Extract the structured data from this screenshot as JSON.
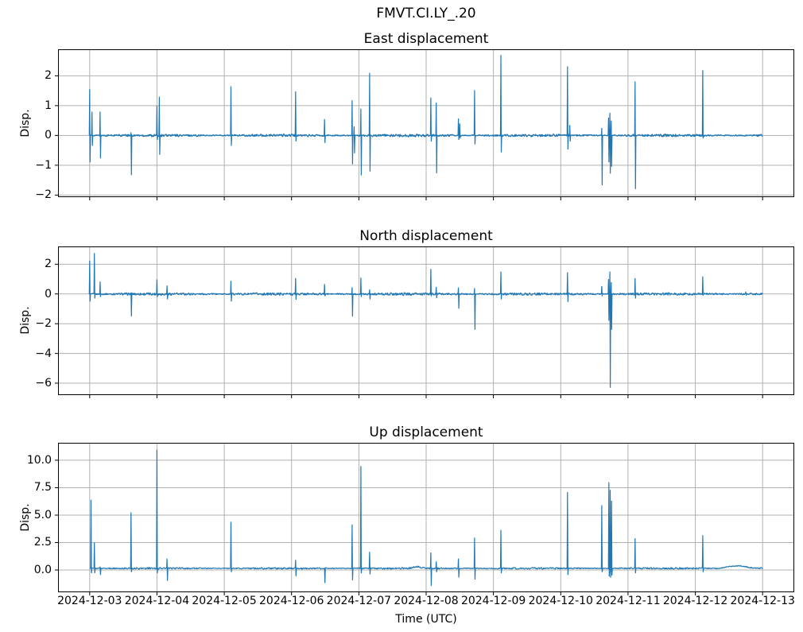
{
  "figure": {
    "suptitle": "FMVT.CI.LY_.20",
    "xlabel": "Time (UTC)",
    "background": "#ffffff",
    "line_color": "#1f77b4",
    "grid_color": "#b0b0b0",
    "spine_color": "#000000",
    "xlim_days_rel_first_tick": [
      -0.47,
      10.47
    ],
    "x_ticks": [
      {
        "day": 0,
        "label": "2024-12-03"
      },
      {
        "day": 1,
        "label": "2024-12-04"
      },
      {
        "day": 2,
        "label": "2024-12-05"
      },
      {
        "day": 3,
        "label": "2024-12-06"
      },
      {
        "day": 4,
        "label": "2024-12-07"
      },
      {
        "day": 5,
        "label": "2024-12-08"
      },
      {
        "day": 6,
        "label": "2024-12-09"
      },
      {
        "day": 7,
        "label": "2024-12-10"
      },
      {
        "day": 8,
        "label": "2024-12-11"
      },
      {
        "day": 9,
        "label": "2024-12-12"
      },
      {
        "day": 10,
        "label": "2024-12-13"
      }
    ]
  },
  "chart_data": [
    {
      "type": "line",
      "title": "East displacement",
      "ylabel": "Disp.",
      "ylim": [
        -2.07,
        2.89
      ],
      "yticks": [
        {
          "v": 2,
          "label": "2"
        },
        {
          "v": 1,
          "label": "1"
        },
        {
          "v": 0,
          "label": "0"
        },
        {
          "v": -1,
          "label": "−1"
        },
        {
          "v": -2,
          "label": "−2"
        }
      ],
      "x_start_day": 0,
      "x_end_day": 10,
      "baseline": 0,
      "noise_amp": 0.035,
      "bumps": [],
      "spikes": [
        [
          0.0,
          1.55,
          -0.9
        ],
        [
          0.035,
          0.8,
          -0.35
        ],
        [
          0.155,
          0.8,
          -0.77
        ],
        [
          0.615,
          0.1,
          -1.33
        ],
        [
          1.0,
          1.0,
          -0.15
        ],
        [
          1.035,
          1.3,
          -0.65
        ],
        [
          2.1,
          1.65,
          -0.35
        ],
        [
          3.06,
          1.48,
          -0.2
        ],
        [
          3.49,
          0.55,
          -0.25
        ],
        [
          3.9,
          1.18,
          -0.97
        ],
        [
          3.93,
          0.3,
          -0.6
        ],
        [
          4.03,
          0.9,
          -1.34
        ],
        [
          4.16,
          2.1,
          -1.21
        ],
        [
          5.07,
          1.27,
          -0.2
        ],
        [
          5.15,
          1.1,
          -1.27
        ],
        [
          5.48,
          0.57,
          -0.15
        ],
        [
          5.5,
          0.4,
          -0.1
        ],
        [
          5.72,
          1.52,
          -0.3
        ],
        [
          6.11,
          2.7,
          -0.57
        ],
        [
          7.1,
          2.32,
          -0.47
        ],
        [
          7.135,
          0.35,
          -0.2
        ],
        [
          7.61,
          0.25,
          -1.67
        ],
        [
          7.71,
          0.6,
          -0.9
        ],
        [
          7.73,
          0.76,
          -1.28
        ],
        [
          7.75,
          0.5,
          -1.05
        ],
        [
          8.105,
          1.81,
          -1.8
        ],
        [
          9.11,
          2.19,
          -0.1
        ]
      ]
    },
    {
      "type": "line",
      "title": "North displacement",
      "ylabel": "Disp.",
      "ylim": [
        -6.8,
        3.2
      ],
      "yticks": [
        {
          "v": 2,
          "label": "2"
        },
        {
          "v": 0,
          "label": "0"
        },
        {
          "v": -2,
          "label": "−2"
        },
        {
          "v": -4,
          "label": "−4"
        },
        {
          "v": -6,
          "label": "−6"
        }
      ],
      "x_start_day": 0,
      "x_end_day": 10,
      "baseline": 0,
      "noise_amp": 0.07,
      "bumps": [],
      "spikes": [
        [
          0.0,
          2.24,
          -0.5
        ],
        [
          0.07,
          2.76,
          -0.3
        ],
        [
          0.155,
          0.84,
          -0.2
        ],
        [
          0.615,
          0.1,
          -1.51
        ],
        [
          1.0,
          0.98,
          -0.2
        ],
        [
          1.15,
          0.57,
          -0.36
        ],
        [
          2.1,
          0.89,
          -0.5
        ],
        [
          3.06,
          1.07,
          -0.39
        ],
        [
          3.49,
          0.67,
          -0.15
        ],
        [
          3.9,
          0.45,
          -1.51
        ],
        [
          4.03,
          1.1,
          -0.2
        ],
        [
          4.16,
          0.3,
          -0.36
        ],
        [
          5.07,
          1.69,
          -0.15
        ],
        [
          5.15,
          0.48,
          -0.27
        ],
        [
          5.48,
          0.44,
          -0.98
        ],
        [
          5.72,
          0.4,
          -2.4
        ],
        [
          6.11,
          1.51,
          -0.36
        ],
        [
          7.1,
          1.46,
          -0.53
        ],
        [
          7.61,
          0.53,
          -0.15
        ],
        [
          7.71,
          1.0,
          -1.8
        ],
        [
          7.73,
          1.51,
          -6.3
        ],
        [
          7.75,
          0.8,
          -2.4
        ],
        [
          8.105,
          1.07,
          -0.3
        ],
        [
          9.11,
          1.19,
          -0.1
        ],
        [
          9.75,
          0.15,
          -0.1
        ]
      ]
    },
    {
      "type": "line",
      "title": "Up displacement",
      "ylabel": "Disp.",
      "ylim": [
        -2.03,
        11.59
      ],
      "yticks": [
        {
          "v": 10,
          "label": "10.0"
        },
        {
          "v": 7.5,
          "label": "7.5"
        },
        {
          "v": 5,
          "label": "5.0"
        },
        {
          "v": 2.5,
          "label": "2.5"
        },
        {
          "v": 0,
          "label": "0.0"
        }
      ],
      "x_start_day": 0,
      "x_end_day": 10,
      "baseline": 0.15,
      "noise_amp": 0.06,
      "bumps": [
        [
          4.72,
          5.02,
          0.15
        ],
        [
          9.3,
          9.95,
          0.22
        ]
      ],
      "spikes": [
        [
          0.02,
          6.4,
          -0.3
        ],
        [
          0.07,
          2.5,
          -0.3
        ],
        [
          0.155,
          0.3,
          -0.45
        ],
        [
          0.615,
          5.25,
          -0.2
        ],
        [
          1.0,
          10.95,
          -0.3
        ],
        [
          1.15,
          1.04,
          -0.99
        ],
        [
          2.1,
          4.39,
          -0.2
        ],
        [
          3.06,
          0.92,
          -0.57
        ],
        [
          3.49,
          0.15,
          -1.19
        ],
        [
          3.9,
          4.14,
          -0.94
        ],
        [
          4.03,
          9.47,
          -0.3
        ],
        [
          4.16,
          1.66,
          -0.4
        ],
        [
          5.07,
          1.59,
          -1.44
        ],
        [
          5.15,
          0.79,
          -0.2
        ],
        [
          5.48,
          1.04,
          -0.69
        ],
        [
          5.72,
          2.95,
          -0.87
        ],
        [
          6.11,
          3.64,
          -0.3
        ],
        [
          7.1,
          7.1,
          -0.45
        ],
        [
          7.61,
          5.9,
          -0.2
        ],
        [
          7.715,
          8.0,
          -0.6
        ],
        [
          7.735,
          7.3,
          -0.7
        ],
        [
          7.755,
          6.3,
          -0.5
        ],
        [
          8.105,
          2.9,
          -0.3
        ],
        [
          9.11,
          3.17,
          -0.2
        ]
      ]
    }
  ]
}
